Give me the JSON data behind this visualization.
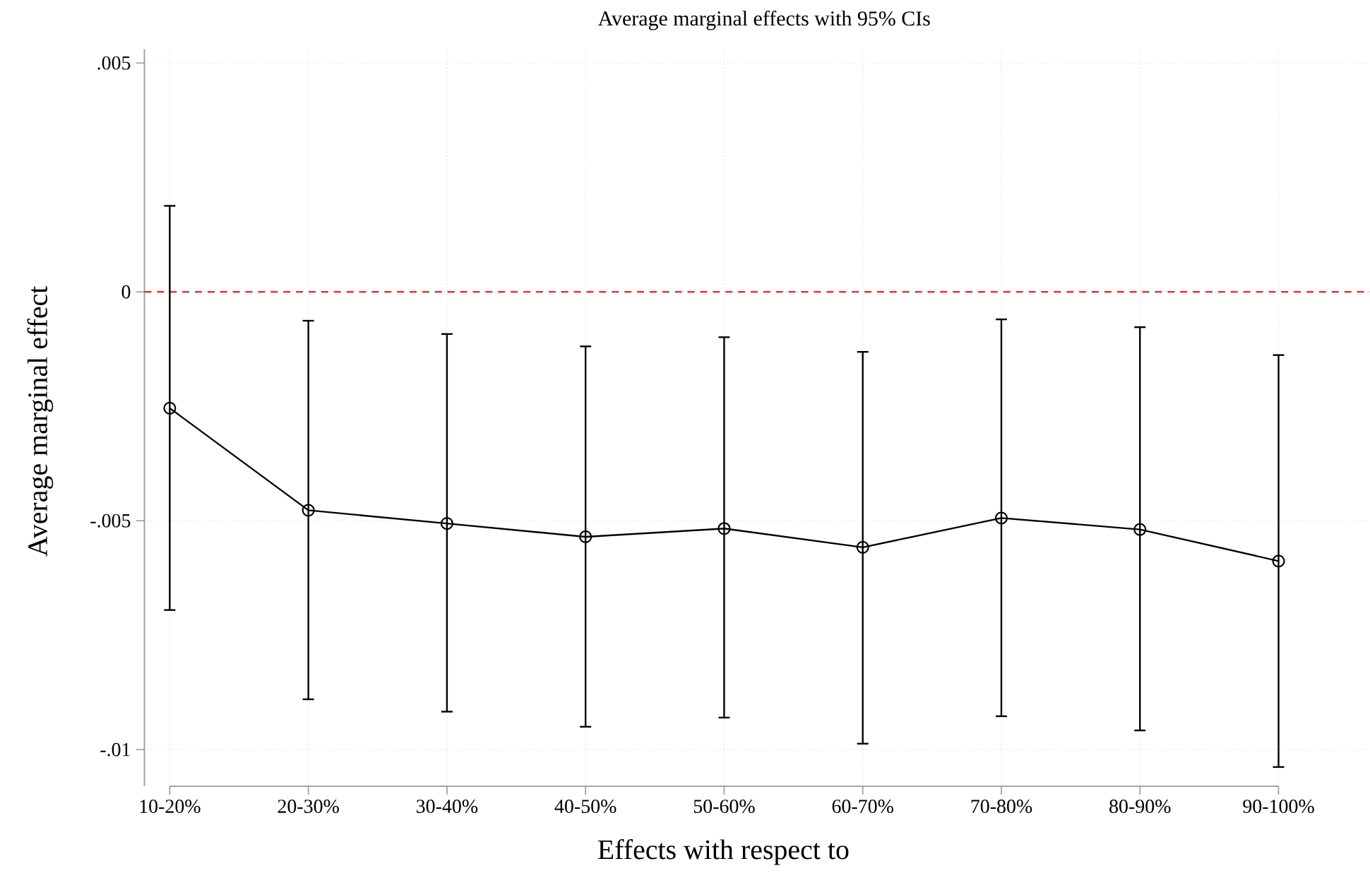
{
  "chart_data": {
    "type": "line",
    "title": "Average marginal effects with 95% CIs",
    "xlabel": "Effects with respect to",
    "ylabel": "Average marginal effect",
    "categories": [
      "10-20%",
      "20-30%",
      "30-40%",
      "40-50%",
      "50-60%",
      "60-70%",
      "70-80%",
      "80-90%",
      "90-100%"
    ],
    "values": [
      -0.00254,
      -0.00477,
      -0.00506,
      -0.00535,
      -0.00517,
      -0.00558,
      -0.00494,
      -0.00519,
      -0.00588
    ],
    "errors": [
      [
        -0.00695,
        0.00188
      ],
      [
        -0.0089,
        -0.00063
      ],
      [
        -0.00917,
        -0.00092
      ],
      [
        -0.0095,
        -0.00119
      ],
      [
        -0.0093,
        -0.00099
      ],
      [
        -0.00987,
        -0.00131
      ],
      [
        -0.00927,
        -0.0006
      ],
      [
        -0.00958,
        -0.00077
      ],
      [
        -0.01038,
        -0.00138
      ]
    ],
    "color": "#000000",
    "marker": "circle",
    "ylim": [
      -0.0108,
      0.0053
    ],
    "yticks": [
      {
        "value": 0.005,
        "label": ".005"
      },
      0,
      {
        "value": -0.005,
        "label": "-.005"
      },
      {
        "value": -0.01,
        "label": "-.01"
      }
    ],
    "ref_lines": [
      {
        "axis": "y",
        "value": 0,
        "color": "#ff0000",
        "line_style": "dashed"
      }
    ],
    "grid": true
  }
}
